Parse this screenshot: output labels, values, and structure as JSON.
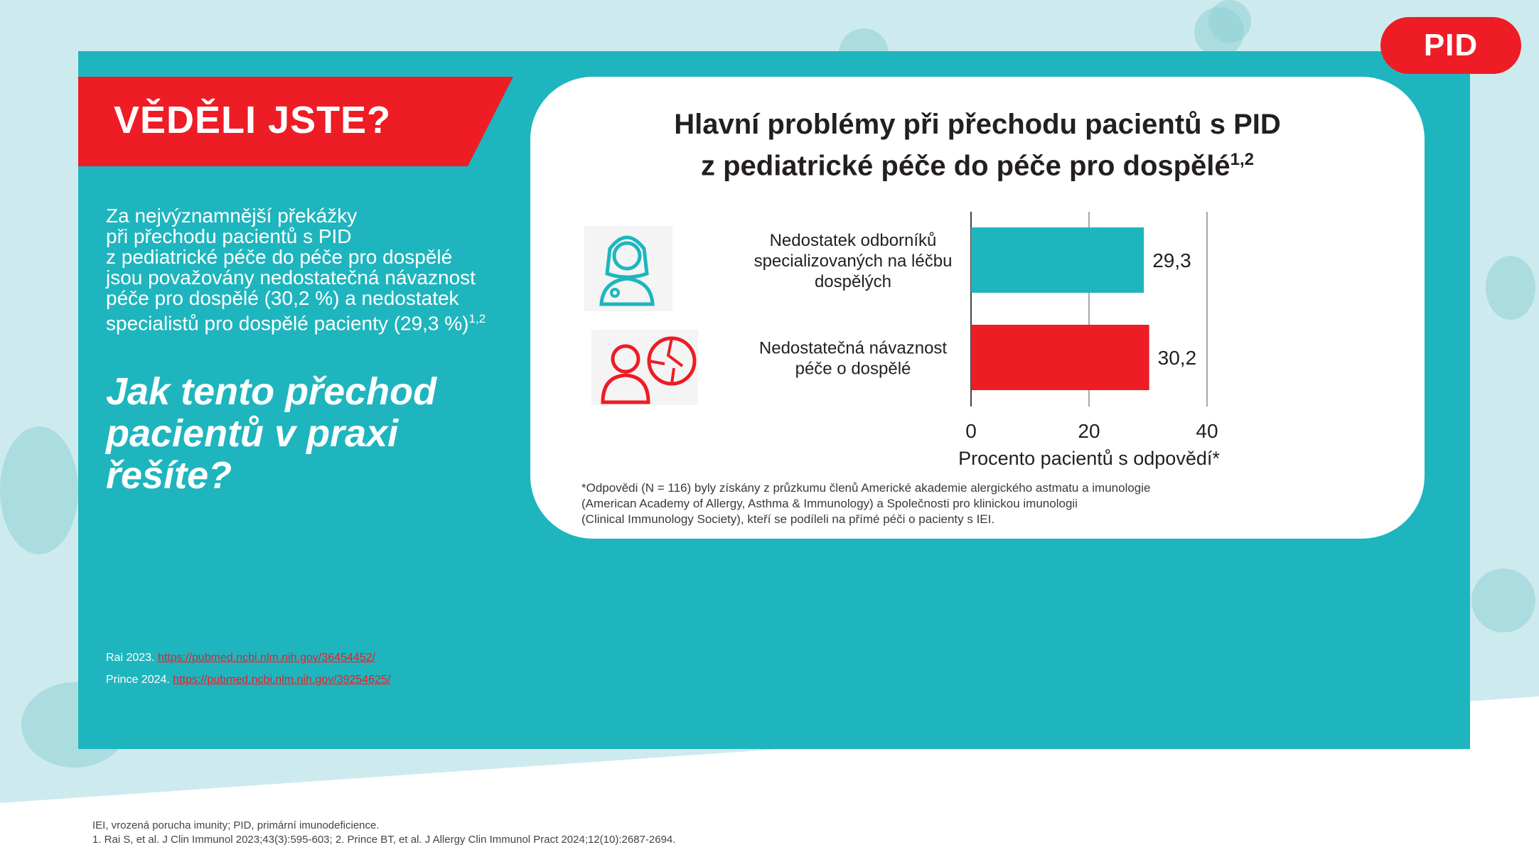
{
  "badge": "PID",
  "banner_title": "VĚDĚLI JSTE?",
  "intro": {
    "lines": [
      "Za nejvýznamnější překážky",
      "při přechodu pacientů s PID",
      "z pediatrické péče do péče pro dospělé",
      "jsou považovány nedostatečná návaznost",
      "péče pro dospělé (30,2 %) a nedostatek",
      "specialistů pro dospělé pacienty (29,3 %)"
    ],
    "sup": "1,2"
  },
  "question": "Jak tento přechod pacientů v praxi řešíte?",
  "references": [
    {
      "label": "Rai 2023.",
      "link": "https://pubmed.ncbi.nlm.nih.gov/36454452/"
    },
    {
      "label": "Prince 2024.",
      "link": "https://pubmed.ncbi.nlm.nih.gov/39254625/"
    }
  ],
  "chart_title": {
    "line1": "Hlavní problémy při přechodu pacientů s PID",
    "line2": "z pediatrické péče do péče pro dospělé",
    "sup": "1,2"
  },
  "chart_data": {
    "type": "bar",
    "orientation": "horizontal",
    "categories": [
      [
        "Nedostatek odborníků",
        "specializovaných na léčbu",
        "dospělých"
      ],
      [
        "Nedostatečná návaznost",
        "péče o dospělé"
      ]
    ],
    "values": [
      29.3,
      30.2
    ],
    "value_labels": [
      "29,3",
      "30,2"
    ],
    "bar_colors": [
      "#1fb5be",
      "#ee1c25"
    ],
    "icons": [
      "doctor-icon",
      "patient-puzzle-icon"
    ],
    "xlabel": "Procento pacientů s odpovědí*",
    "xlim": [
      0,
      40
    ],
    "ticks": [
      0,
      20,
      40
    ],
    "grid": true
  },
  "footnote": [
    "*Odpovědi (N = 116) byly získány z průzkumu členů Americké akademie alergického astmatu a imunologie",
    "(American Academy of Allergy, Asthma & Immunology) a Společnosti pro klinickou imunologii",
    "(Clinical Immunology Society), kteří se podíleli na přímé péči o pacienty s IEI."
  ],
  "bottom_notes": [
    "IEI, vrozená porucha imunity; PID, primární imunodeficience.",
    "1. Rai S, et al. J Clin Immunol 2023;43(3):595-603; 2. Prince BT, et al. J Allergy Clin Immunol Pract 2024;12(10):2687-2694."
  ],
  "colors": {
    "teal": "#1fb5be",
    "red": "#ee1c25",
    "light_teal": "#cdebee"
  }
}
